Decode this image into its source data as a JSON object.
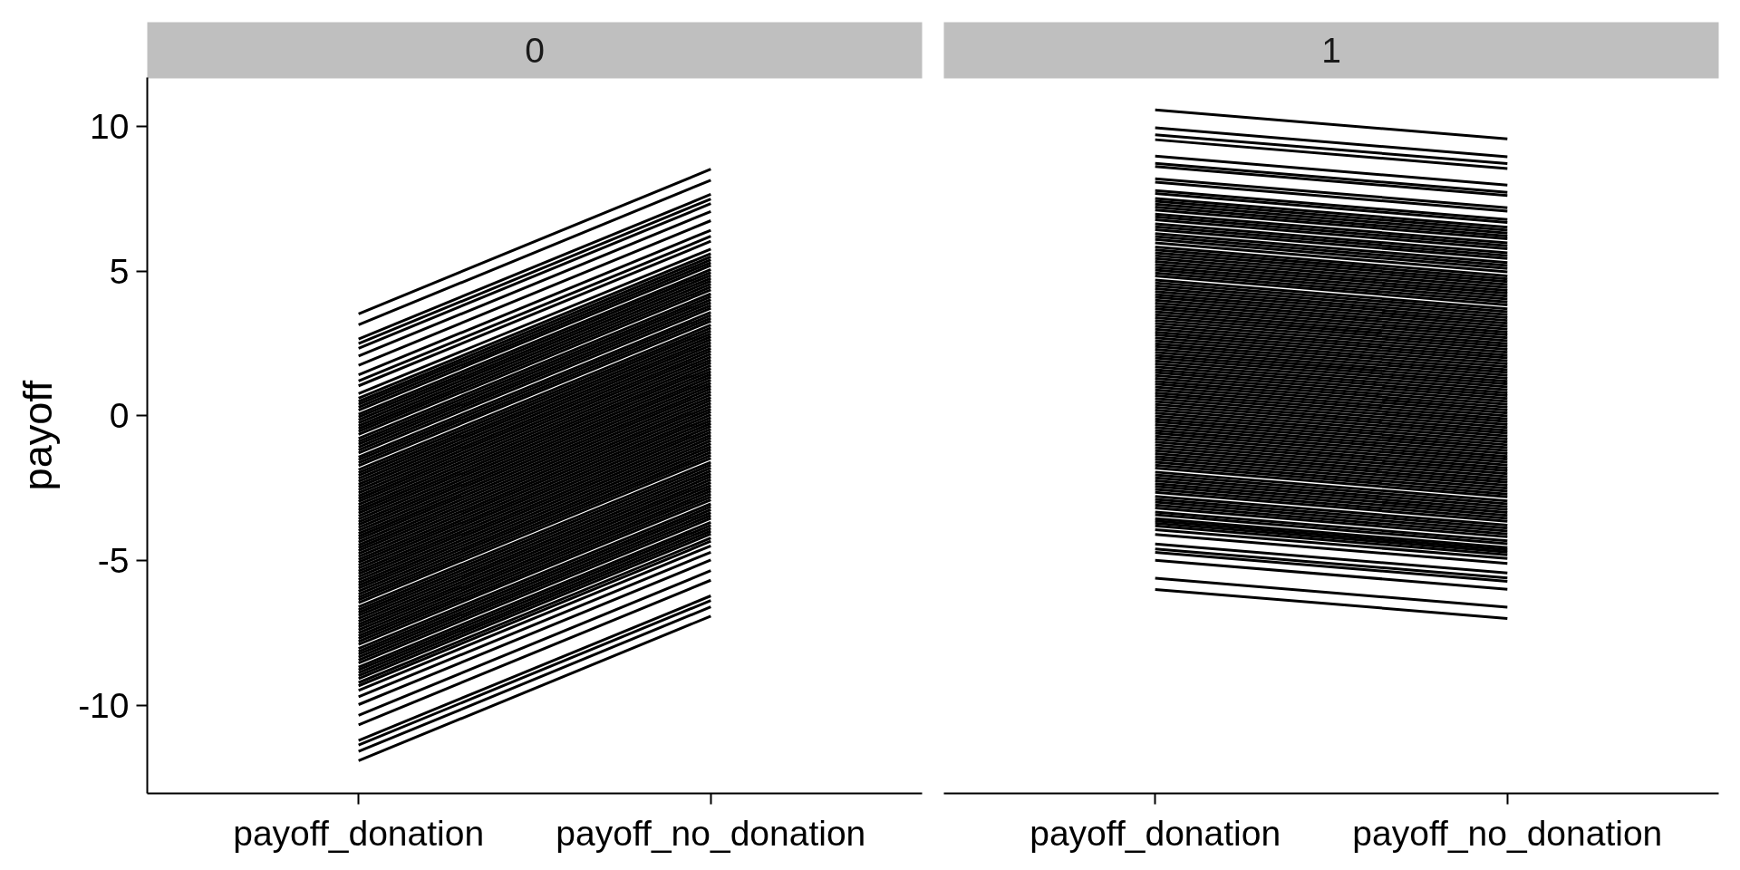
{
  "chart_data": [
    {
      "type": "line",
      "title": "0",
      "ylabel": "payoff",
      "categories": [
        "payoff_donation",
        "payoff_no_donation"
      ],
      "ylim": [
        -13.05,
        11.7
      ],
      "yticks": [
        -10,
        -5,
        0,
        5,
        10
      ],
      "series": [
        {
          "color": "#000000",
          "values": [
            3.53,
            8.53
          ]
        },
        {
          "color": "#000000",
          "values": [
            3.15,
            8.15
          ]
        },
        {
          "color": "#000000",
          "values": [
            2.66,
            7.66
          ]
        },
        {
          "color": "#000000",
          "values": [
            2.5,
            7.5
          ]
        },
        {
          "color": "#000000",
          "values": [
            2.34,
            7.34
          ]
        },
        {
          "color": "#000000",
          "values": [
            2.07,
            7.07
          ]
        },
        {
          "color": "#000000",
          "values": [
            1.75,
            6.75
          ]
        },
        {
          "color": "#000000",
          "values": [
            1.42,
            6.42
          ]
        },
        {
          "color": "#000000",
          "values": [
            1.21,
            6.21
          ]
        },
        {
          "color": "#000000",
          "values": [
            1.04,
            6.04
          ]
        },
        {
          "color": "#000000",
          "values": [
            0.77,
            5.77
          ]
        },
        {
          "color": "#000000",
          "values": [
            0.61,
            5.61
          ]
        },
        {
          "color": "#000000",
          "values": [
            0.5,
            5.5
          ]
        },
        {
          "color": "#000000",
          "values": [
            0.4,
            5.4
          ]
        },
        {
          "color": "#000000",
          "values": [
            0.3,
            5.3
          ]
        },
        {
          "color": "#000000",
          "values": [
            0.2,
            5.2
          ]
        },
        {
          "color": "#000000",
          "values": [
            0.06,
            5.06
          ]
        },
        {
          "color": "#000000",
          "values": [
            -0.04,
            4.96
          ]
        },
        {
          "color": "#000000",
          "values": [
            -0.14,
            4.86
          ]
        },
        {
          "color": "#000000",
          "values": [
            -0.24,
            4.76
          ]
        },
        {
          "color": "#000000",
          "values": [
            -0.34,
            4.66
          ]
        },
        {
          "color": "#000000",
          "values": [
            -0.44,
            4.56
          ]
        },
        {
          "color": "#000000",
          "values": [
            -0.54,
            4.46
          ]
        },
        {
          "color": "#000000",
          "values": [
            -0.64,
            4.36
          ]
        },
        {
          "color": "#000000",
          "values": [
            -0.78,
            4.22
          ]
        },
        {
          "color": "#000000",
          "values": [
            -0.88,
            4.12
          ]
        },
        {
          "color": "#000000",
          "values": [
            -0.98,
            4.02
          ]
        },
        {
          "color": "#000000",
          "values": [
            -1.08,
            3.92
          ]
        },
        {
          "color": "#000000",
          "values": [
            -1.18,
            3.82
          ]
        },
        {
          "color": "#000000",
          "values": [
            -1.28,
            3.72
          ]
        },
        {
          "color": "#000000",
          "values": [
            -1.42,
            3.58
          ]
        },
        {
          "color": "#000000",
          "values": [
            -1.52,
            3.48
          ]
        },
        {
          "color": "#000000",
          "values": [
            -1.62,
            3.38
          ]
        },
        {
          "color": "#000000",
          "values": [
            -1.72,
            3.28
          ]
        },
        {
          "color": "#000000",
          "values": [
            -1.86,
            3.14
          ]
        },
        {
          "color": "#000000",
          "values": [
            -1.96,
            3.04
          ]
        },
        {
          "color": "#000000",
          "values": [
            -2.06,
            2.94
          ]
        },
        {
          "color": "#000000",
          "values": [
            -2.16,
            2.84
          ]
        },
        {
          "color": "#000000",
          "values": [
            -2.26,
            2.74
          ]
        },
        {
          "color": "#000000",
          "values": [
            -2.36,
            2.64
          ]
        },
        {
          "color": "#000000",
          "values": [
            -2.46,
            2.54
          ]
        },
        {
          "color": "#000000",
          "values": [
            -2.56,
            2.44
          ]
        },
        {
          "color": "#000000",
          "values": [
            -2.66,
            2.34
          ]
        },
        {
          "color": "#000000",
          "values": [
            -2.76,
            2.24
          ]
        },
        {
          "color": "#000000",
          "values": [
            -2.86,
            2.14
          ]
        },
        {
          "color": "#000000",
          "values": [
            -2.96,
            2.04
          ]
        },
        {
          "color": "#000000",
          "values": [
            -3.06,
            1.94
          ]
        },
        {
          "color": "#000000",
          "values": [
            -3.16,
            1.84
          ]
        },
        {
          "color": "#000000",
          "values": [
            -3.26,
            1.74
          ]
        },
        {
          "color": "#000000",
          "values": [
            -3.36,
            1.64
          ]
        },
        {
          "color": "#000000",
          "values": [
            -3.46,
            1.54
          ]
        },
        {
          "color": "#000000",
          "values": [
            -3.56,
            1.44
          ]
        },
        {
          "color": "#000000",
          "values": [
            -3.66,
            1.34
          ]
        },
        {
          "color": "#000000",
          "values": [
            -3.76,
            1.24
          ]
        },
        {
          "color": "#000000",
          "values": [
            -3.86,
            1.14
          ]
        },
        {
          "color": "#000000",
          "values": [
            -3.96,
            1.04
          ]
        },
        {
          "color": "#000000",
          "values": [
            -4.06,
            0.94
          ]
        },
        {
          "color": "#000000",
          "values": [
            -4.16,
            0.84
          ]
        },
        {
          "color": "#000000",
          "values": [
            -4.26,
            0.74
          ]
        },
        {
          "color": "#000000",
          "values": [
            -4.36,
            0.64
          ]
        },
        {
          "color": "#000000",
          "values": [
            -4.46,
            0.54
          ]
        },
        {
          "color": "#000000",
          "values": [
            -4.56,
            0.44
          ]
        },
        {
          "color": "#000000",
          "values": [
            -4.66,
            0.34
          ]
        },
        {
          "color": "#000000",
          "values": [
            -4.76,
            0.24
          ]
        },
        {
          "color": "#000000",
          "values": [
            -4.86,
            0.14
          ]
        },
        {
          "color": "#000000",
          "values": [
            -4.96,
            0.04
          ]
        },
        {
          "color": "#000000",
          "values": [
            -5.06,
            -0.06
          ]
        },
        {
          "color": "#000000",
          "values": [
            -5.16,
            -0.16
          ]
        },
        {
          "color": "#000000",
          "values": [
            -5.26,
            -0.26
          ]
        },
        {
          "color": "#000000",
          "values": [
            -5.36,
            -0.36
          ]
        },
        {
          "color": "#000000",
          "values": [
            -5.46,
            -0.46
          ]
        },
        {
          "color": "#000000",
          "values": [
            -5.56,
            -0.56
          ]
        },
        {
          "color": "#000000",
          "values": [
            -5.66,
            -0.66
          ]
        },
        {
          "color": "#000000",
          "values": [
            -5.76,
            -0.76
          ]
        },
        {
          "color": "#000000",
          "values": [
            -5.86,
            -0.86
          ]
        },
        {
          "color": "#000000",
          "values": [
            -5.96,
            -0.96
          ]
        },
        {
          "color": "#000000",
          "values": [
            -6.06,
            -1.06
          ]
        },
        {
          "color": "#000000",
          "values": [
            -6.16,
            -1.16
          ]
        },
        {
          "color": "#000000",
          "values": [
            -6.26,
            -1.26
          ]
        },
        {
          "color": "#000000",
          "values": [
            -6.36,
            -1.36
          ]
        },
        {
          "color": "#000000",
          "values": [
            -6.46,
            -1.46
          ]
        },
        {
          "color": "#000000",
          "values": [
            -6.6,
            -1.6
          ]
        },
        {
          "color": "#000000",
          "values": [
            -6.7,
            -1.7
          ]
        },
        {
          "color": "#000000",
          "values": [
            -6.8,
            -1.8
          ]
        },
        {
          "color": "#000000",
          "values": [
            -6.9,
            -1.9
          ]
        },
        {
          "color": "#000000",
          "values": [
            -7.0,
            -2.0
          ]
        },
        {
          "color": "#000000",
          "values": [
            -7.1,
            -2.1
          ]
        },
        {
          "color": "#000000",
          "values": [
            -7.2,
            -2.2
          ]
        },
        {
          "color": "#000000",
          "values": [
            -7.3,
            -2.3
          ]
        },
        {
          "color": "#000000",
          "values": [
            -7.4,
            -2.4
          ]
        },
        {
          "color": "#000000",
          "values": [
            -7.5,
            -2.5
          ]
        },
        {
          "color": "#000000",
          "values": [
            -7.6,
            -2.6
          ]
        },
        {
          "color": "#000000",
          "values": [
            -7.7,
            -2.7
          ]
        },
        {
          "color": "#000000",
          "values": [
            -7.8,
            -2.8
          ]
        },
        {
          "color": "#000000",
          "values": [
            -7.9,
            -2.9
          ]
        },
        {
          "color": "#000000",
          "values": [
            -8.04,
            -3.04
          ]
        },
        {
          "color": "#000000",
          "values": [
            -8.14,
            -3.14
          ]
        },
        {
          "color": "#000000",
          "values": [
            -8.24,
            -3.24
          ]
        },
        {
          "color": "#000000",
          "values": [
            -8.34,
            -3.34
          ]
        },
        {
          "color": "#000000",
          "values": [
            -8.44,
            -3.44
          ]
        },
        {
          "color": "#000000",
          "values": [
            -8.54,
            -3.54
          ]
        },
        {
          "color": "#000000",
          "values": [
            -8.68,
            -3.68
          ]
        },
        {
          "color": "#000000",
          "values": [
            -8.78,
            -3.78
          ]
        },
        {
          "color": "#000000",
          "values": [
            -8.88,
            -3.88
          ]
        },
        {
          "color": "#000000",
          "values": [
            -8.98,
            -3.98
          ]
        },
        {
          "color": "#000000",
          "values": [
            -9.08,
            -4.08
          ]
        },
        {
          "color": "#000000",
          "values": [
            -9.22,
            -4.22
          ]
        },
        {
          "color": "#000000",
          "values": [
            -9.33,
            -4.33
          ]
        },
        {
          "color": "#000000",
          "values": [
            -9.49,
            -4.49
          ]
        },
        {
          "color": "#000000",
          "values": [
            -9.71,
            -4.71
          ]
        },
        {
          "color": "#000000",
          "values": [
            -9.98,
            -4.98
          ]
        },
        {
          "color": "#000000",
          "values": [
            -10.35,
            -5.35
          ]
        },
        {
          "color": "#000000",
          "values": [
            -10.68,
            -5.68
          ]
        },
        {
          "color": "#000000",
          "values": [
            -11.22,
            -6.22
          ]
        },
        {
          "color": "#000000",
          "values": [
            -11.38,
            -6.38
          ]
        },
        {
          "color": "#000000",
          "values": [
            -11.6,
            -6.6
          ]
        },
        {
          "color": "#000000",
          "values": [
            -11.92,
            -6.92
          ]
        }
      ]
    },
    {
      "type": "line",
      "title": "1",
      "categories": [
        "payoff_donation",
        "payoff_no_donation"
      ],
      "ylim": [
        -13.05,
        11.7
      ],
      "yticks": [
        -10,
        -5,
        0,
        5,
        10
      ],
      "tick_labels": "x",
      "series": [
        {
          "color": "#000000",
          "values": [
            10.58,
            9.58
          ]
        },
        {
          "color": "#000000",
          "values": [
            9.96,
            8.96
          ]
        },
        {
          "color": "#000000",
          "values": [
            9.72,
            8.72
          ]
        },
        {
          "color": "#000000",
          "values": [
            9.55,
            8.55
          ]
        },
        {
          "color": "#000000",
          "values": [
            8.98,
            7.98
          ]
        },
        {
          "color": "#000000",
          "values": [
            8.73,
            7.73
          ]
        },
        {
          "color": "#000000",
          "values": [
            8.62,
            7.62
          ]
        },
        {
          "color": "#000000",
          "values": [
            8.2,
            7.2
          ]
        },
        {
          "color": "#000000",
          "values": [
            8.08,
            7.08
          ]
        },
        {
          "color": "#000000",
          "values": [
            7.79,
            6.79
          ]
        },
        {
          "color": "#000000",
          "values": [
            7.69,
            6.69
          ]
        },
        {
          "color": "#000000",
          "values": [
            7.52,
            6.52
          ]
        },
        {
          "color": "#000000",
          "values": [
            7.42,
            6.42
          ]
        },
        {
          "color": "#000000",
          "values": [
            7.32,
            6.32
          ]
        },
        {
          "color": "#000000",
          "values": [
            7.22,
            6.22
          ]
        },
        {
          "color": "#000000",
          "values": [
            7.12,
            6.12
          ]
        },
        {
          "color": "#000000",
          "values": [
            6.98,
            5.98
          ]
        },
        {
          "color": "#000000",
          "values": [
            6.88,
            5.88
          ]
        },
        {
          "color": "#000000",
          "values": [
            6.78,
            5.78
          ]
        },
        {
          "color": "#000000",
          "values": [
            6.64,
            5.64
          ]
        },
        {
          "color": "#000000",
          "values": [
            6.54,
            5.54
          ]
        },
        {
          "color": "#000000",
          "values": [
            6.44,
            5.44
          ]
        },
        {
          "color": "#000000",
          "values": [
            6.3,
            5.3
          ]
        },
        {
          "color": "#000000",
          "values": [
            6.2,
            5.2
          ]
        },
        {
          "color": "#000000",
          "values": [
            6.1,
            5.1
          ]
        },
        {
          "color": "#000000",
          "values": [
            5.98,
            4.98
          ]
        },
        {
          "color": "#000000",
          "values": [
            5.84,
            4.84
          ]
        },
        {
          "color": "#000000",
          "values": [
            5.74,
            4.74
          ]
        },
        {
          "color": "#000000",
          "values": [
            5.64,
            4.64
          ]
        },
        {
          "color": "#000000",
          "values": [
            5.54,
            4.54
          ]
        },
        {
          "color": "#000000",
          "values": [
            5.44,
            4.44
          ]
        },
        {
          "color": "#000000",
          "values": [
            5.34,
            4.34
          ]
        },
        {
          "color": "#000000",
          "values": [
            5.24,
            4.24
          ]
        },
        {
          "color": "#000000",
          "values": [
            5.14,
            4.14
          ]
        },
        {
          "color": "#000000",
          "values": [
            5.04,
            4.04
          ]
        },
        {
          "color": "#000000",
          "values": [
            4.94,
            3.94
          ]
        },
        {
          "color": "#000000",
          "values": [
            4.84,
            3.84
          ]
        },
        {
          "color": "#000000",
          "values": [
            4.7,
            3.7
          ]
        },
        {
          "color": "#000000",
          "values": [
            4.6,
            3.6
          ]
        },
        {
          "color": "#000000",
          "values": [
            4.5,
            3.5
          ]
        },
        {
          "color": "#000000",
          "values": [
            4.4,
            3.4
          ]
        },
        {
          "color": "#000000",
          "values": [
            4.3,
            3.3
          ]
        },
        {
          "color": "#000000",
          "values": [
            4.2,
            3.2
          ]
        },
        {
          "color": "#000000",
          "values": [
            4.1,
            3.1
          ]
        },
        {
          "color": "#000000",
          "values": [
            4.0,
            3.0
          ]
        },
        {
          "color": "#000000",
          "values": [
            3.9,
            2.9
          ]
        },
        {
          "color": "#000000",
          "values": [
            3.8,
            2.8
          ]
        },
        {
          "color": "#000000",
          "values": [
            3.7,
            2.7
          ]
        },
        {
          "color": "#000000",
          "values": [
            3.6,
            2.6
          ]
        },
        {
          "color": "#000000",
          "values": [
            3.5,
            2.5
          ]
        },
        {
          "color": "#000000",
          "values": [
            3.4,
            2.4
          ]
        },
        {
          "color": "#000000",
          "values": [
            3.3,
            2.3
          ]
        },
        {
          "color": "#000000",
          "values": [
            3.2,
            2.2
          ]
        },
        {
          "color": "#000000",
          "values": [
            3.1,
            2.1
          ]
        },
        {
          "color": "#000000",
          "values": [
            3.0,
            2.0
          ]
        },
        {
          "color": "#000000",
          "values": [
            2.9,
            1.9
          ]
        },
        {
          "color": "#000000",
          "values": [
            2.8,
            1.8
          ]
        },
        {
          "color": "#000000",
          "values": [
            2.7,
            1.7
          ]
        },
        {
          "color": "#000000",
          "values": [
            2.6,
            1.6
          ]
        },
        {
          "color": "#000000",
          "values": [
            2.5,
            1.5
          ]
        },
        {
          "color": "#000000",
          "values": [
            2.4,
            1.4
          ]
        },
        {
          "color": "#000000",
          "values": [
            2.3,
            1.3
          ]
        },
        {
          "color": "#000000",
          "values": [
            2.2,
            1.2
          ]
        },
        {
          "color": "#000000",
          "values": [
            2.1,
            1.1
          ]
        },
        {
          "color": "#000000",
          "values": [
            2.0,
            1.0
          ]
        },
        {
          "color": "#000000",
          "values": [
            1.9,
            0.9
          ]
        },
        {
          "color": "#000000",
          "values": [
            1.8,
            0.8
          ]
        },
        {
          "color": "#000000",
          "values": [
            1.7,
            0.7
          ]
        },
        {
          "color": "#000000",
          "values": [
            1.6,
            0.6
          ]
        },
        {
          "color": "#000000",
          "values": [
            1.5,
            0.5
          ]
        },
        {
          "color": "#000000",
          "values": [
            1.4,
            0.4
          ]
        },
        {
          "color": "#000000",
          "values": [
            1.3,
            0.3
          ]
        },
        {
          "color": "#000000",
          "values": [
            1.2,
            0.2
          ]
        },
        {
          "color": "#000000",
          "values": [
            1.1,
            0.1
          ]
        },
        {
          "color": "#000000",
          "values": [
            1.0,
            0.0
          ]
        },
        {
          "color": "#000000",
          "values": [
            0.9,
            -0.1
          ]
        },
        {
          "color": "#000000",
          "values": [
            0.8,
            -0.2
          ]
        },
        {
          "color": "#000000",
          "values": [
            0.7,
            -0.3
          ]
        },
        {
          "color": "#000000",
          "values": [
            0.6,
            -0.4
          ]
        },
        {
          "color": "#000000",
          "values": [
            0.5,
            -0.5
          ]
        },
        {
          "color": "#000000",
          "values": [
            0.4,
            -0.6
          ]
        },
        {
          "color": "#000000",
          "values": [
            0.3,
            -0.7
          ]
        },
        {
          "color": "#000000",
          "values": [
            0.2,
            -0.8
          ]
        },
        {
          "color": "#000000",
          "values": [
            0.1,
            -0.9
          ]
        },
        {
          "color": "#000000",
          "values": [
            0.0,
            -1.0
          ]
        },
        {
          "color": "#000000",
          "values": [
            -0.1,
            -1.1
          ]
        },
        {
          "color": "#000000",
          "values": [
            -0.2,
            -1.2
          ]
        },
        {
          "color": "#000000",
          "values": [
            -0.3,
            -1.3
          ]
        },
        {
          "color": "#000000",
          "values": [
            -0.4,
            -1.4
          ]
        },
        {
          "color": "#000000",
          "values": [
            -0.5,
            -1.5
          ]
        },
        {
          "color": "#000000",
          "values": [
            -0.6,
            -1.6
          ]
        },
        {
          "color": "#000000",
          "values": [
            -0.7,
            -1.7
          ]
        },
        {
          "color": "#000000",
          "values": [
            -0.8,
            -1.8
          ]
        },
        {
          "color": "#000000",
          "values": [
            -0.9,
            -1.9
          ]
        },
        {
          "color": "#000000",
          "values": [
            -1.0,
            -2.0
          ]
        },
        {
          "color": "#000000",
          "values": [
            -1.1,
            -2.1
          ]
        },
        {
          "color": "#000000",
          "values": [
            -1.2,
            -2.2
          ]
        },
        {
          "color": "#000000",
          "values": [
            -1.3,
            -2.3
          ]
        },
        {
          "color": "#000000",
          "values": [
            -1.4,
            -2.4
          ]
        },
        {
          "color": "#000000",
          "values": [
            -1.5,
            -2.5
          ]
        },
        {
          "color": "#000000",
          "values": [
            -1.6,
            -2.6
          ]
        },
        {
          "color": "#000000",
          "values": [
            -1.7,
            -2.7
          ]
        },
        {
          "color": "#000000",
          "values": [
            -1.8,
            -2.8
          ]
        },
        {
          "color": "#000000",
          "values": [
            -1.94,
            -2.94
          ]
        },
        {
          "color": "#000000",
          "values": [
            -2.04,
            -3.04
          ]
        },
        {
          "color": "#000000",
          "values": [
            -2.14,
            -3.14
          ]
        },
        {
          "color": "#000000",
          "values": [
            -2.24,
            -3.24
          ]
        },
        {
          "color": "#000000",
          "values": [
            -2.34,
            -3.34
          ]
        },
        {
          "color": "#000000",
          "values": [
            -2.44,
            -3.44
          ]
        },
        {
          "color": "#000000",
          "values": [
            -2.54,
            -3.54
          ]
        },
        {
          "color": "#000000",
          "values": [
            -2.64,
            -3.64
          ]
        },
        {
          "color": "#000000",
          "values": [
            -2.78,
            -3.78
          ]
        },
        {
          "color": "#000000",
          "values": [
            -2.88,
            -3.88
          ]
        },
        {
          "color": "#000000",
          "values": [
            -2.98,
            -3.98
          ]
        },
        {
          "color": "#000000",
          "values": [
            -3.08,
            -4.08
          ]
        },
        {
          "color": "#000000",
          "values": [
            -3.18,
            -4.18
          ]
        },
        {
          "color": "#000000",
          "values": [
            -3.32,
            -4.32
          ]
        },
        {
          "color": "#000000",
          "values": [
            -3.42,
            -4.42
          ]
        },
        {
          "color": "#000000",
          "values": [
            -3.55,
            -4.55
          ]
        },
        {
          "color": "#000000",
          "values": [
            -3.63,
            -4.63
          ]
        },
        {
          "color": "#000000",
          "values": [
            -3.71,
            -4.71
          ]
        },
        {
          "color": "#000000",
          "values": [
            -3.8,
            -4.8
          ]
        },
        {
          "color": "#000000",
          "values": [
            -3.93,
            -4.93
          ]
        },
        {
          "color": "#000000",
          "values": [
            -4.1,
            -5.1
          ]
        },
        {
          "color": "#000000",
          "values": [
            -4.43,
            -5.43
          ]
        },
        {
          "color": "#000000",
          "values": [
            -4.6,
            -5.6
          ]
        },
        {
          "color": "#000000",
          "values": [
            -4.72,
            -5.72
          ]
        },
        {
          "color": "#000000",
          "values": [
            -4.99,
            -5.99
          ]
        },
        {
          "color": "#000000",
          "values": [
            -5.61,
            -6.61
          ]
        },
        {
          "color": "#000000",
          "values": [
            -6.0,
            -7.0
          ]
        }
      ]
    }
  ]
}
